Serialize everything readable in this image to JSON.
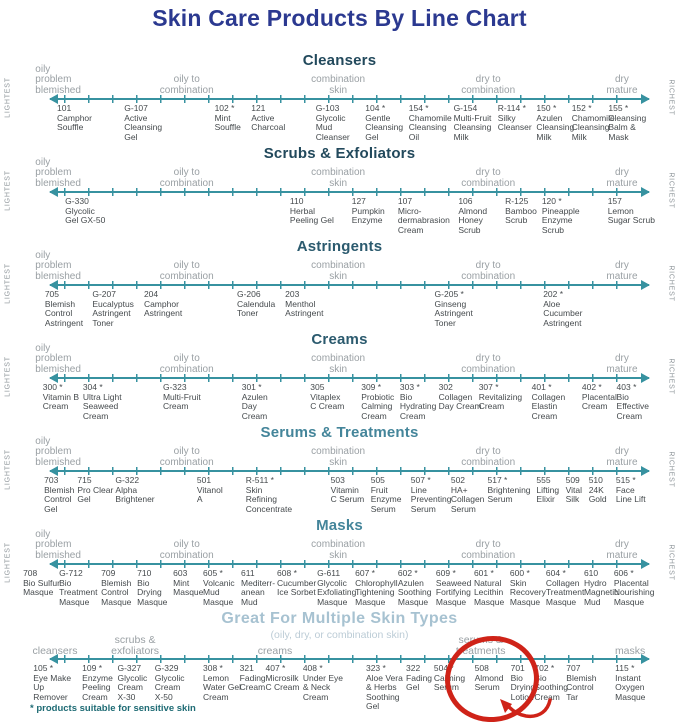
{
  "chart_data": {
    "type": "line",
    "title": "Skin Care Products By Line Chart",
    "footnote": "* products suitable for sensitive skin",
    "axis_range_labels": {
      "left": "LIGHTEST",
      "right": "RICHEST"
    },
    "skin_type_labels": [
      {
        "text": "oily\nproblem\nblemished",
        "pos": 5.2,
        "align": "left"
      },
      {
        "text": "oily to\ncombination",
        "pos": 27.5,
        "align": "center"
      },
      {
        "text": "combination\nskin",
        "pos": 49.8,
        "align": "center"
      },
      {
        "text": "dry to\ncombination",
        "pos": 71.9,
        "align": "center"
      },
      {
        "text": "dry\nmature",
        "pos": 91.6,
        "align": "center"
      }
    ],
    "sections": [
      {
        "name": "Cleansers",
        "color": "#22495c",
        "products": [
          {
            "id": "101",
            "name": "Camphor\nSouffle",
            "pos": 8.4
          },
          {
            "id": "G-107",
            "name": "Active\nCleansing\nGel",
            "pos": 18.3
          },
          {
            "id": "102 *",
            "name": "Mint\nSouffle",
            "pos": 31.6
          },
          {
            "id": "121",
            "name": "Active\nCharcoal",
            "pos": 37.0
          },
          {
            "id": "G-103",
            "name": "Glycolic\nMud\nCleanser",
            "pos": 46.5
          },
          {
            "id": "104 *",
            "name": "Gentle\nCleansing\nGel",
            "pos": 53.8
          },
          {
            "id": "154 *",
            "name": "Chamomile\nCleansing\nOil",
            "pos": 60.2
          },
          {
            "id": "G-154",
            "name": "Multi-Fruit\nCleansing\nMilk",
            "pos": 66.8
          },
          {
            "id": "R-114 *",
            "name": "Silky\nCleanser",
            "pos": 73.3
          },
          {
            "id": "150 *",
            "name": "Azulen\nCleansing\nMilk",
            "pos": 79.0
          },
          {
            "id": "152 *",
            "name": "Chamomile\nCleansing\nMilk",
            "pos": 84.2
          },
          {
            "id": "155 *",
            "name": "Cleansing\nBalm &\nMask",
            "pos": 89.6
          }
        ]
      },
      {
        "name": "Scrubs & Exfoliators",
        "color": "#22495c",
        "products": [
          {
            "id": "G-330",
            "name": "Glycolic\nGel GX-50",
            "pos": 9.6
          },
          {
            "id": "110",
            "name": "Herbal\nPeeling Gel",
            "pos": 42.7
          },
          {
            "id": "127",
            "name": "Pumpkin\nEnzyme",
            "pos": 51.8
          },
          {
            "id": "107",
            "name": "Micro-\ndermabrasion\nCream",
            "pos": 58.6
          },
          {
            "id": "106",
            "name": "Almond\nHoney\nScrub",
            "pos": 67.5
          },
          {
            "id": "R-125",
            "name": "Bamboo\nScrub",
            "pos": 74.4
          },
          {
            "id": "120 *",
            "name": "Pineapple\nEnzyme\nScrub",
            "pos": 79.8
          },
          {
            "id": "157",
            "name": "Lemon\nSugar Scrub",
            "pos": 89.5
          }
        ]
      },
      {
        "name": "Astringents",
        "color": "#2b5a6e",
        "products": [
          {
            "id": "705",
            "name": "Blemish\nControl\nAstringent",
            "pos": 6.6
          },
          {
            "id": "G-207",
            "name": "Eucalyptus\nAstringent\nToner",
            "pos": 13.6
          },
          {
            "id": "204",
            "name": "Camphor\nAstringent",
            "pos": 21.2
          },
          {
            "id": "G-206",
            "name": "Calendula\nToner",
            "pos": 34.9
          },
          {
            "id": "203",
            "name": "Menthol\nAstringent",
            "pos": 42.0
          },
          {
            "id": "G-205 *",
            "name": "Ginseng\nAstringent\nToner",
            "pos": 64.0
          },
          {
            "id": "202 *",
            "name": "Aloe\nCucumber\nAstringent",
            "pos": 80.0
          }
        ]
      },
      {
        "name": "Creams",
        "color": "#2b5a6e",
        "products": [
          {
            "id": "300 *",
            "name": "Vitamin B\nCream",
            "pos": 6.3
          },
          {
            "id": "304 *",
            "name": "Ultra Light\nSeaweed\nCream",
            "pos": 12.2
          },
          {
            "id": "G-323",
            "name": "Multi-Fruit\nCream",
            "pos": 24.0
          },
          {
            "id": "301 *",
            "name": "Azulen\nDay\nCream",
            "pos": 35.6
          },
          {
            "id": "305",
            "name": "Vitaplex\nC Cream",
            "pos": 45.7
          },
          {
            "id": "309 *",
            "name": "Probiotic\nCalming\nCream",
            "pos": 53.2
          },
          {
            "id": "303 *",
            "name": "Bio\nHydrating\nCream",
            "pos": 58.9
          },
          {
            "id": "302",
            "name": "Collagen\nDay Cream",
            "pos": 64.6
          },
          {
            "id": "307 *",
            "name": "Revitalizing\nCream",
            "pos": 70.5
          },
          {
            "id": "401 *",
            "name": "Collagen\nElastin\nCream",
            "pos": 78.3
          },
          {
            "id": "402 *",
            "name": "Placental\nCream",
            "pos": 85.7
          },
          {
            "id": "403 *",
            "name": "Bio\nEffective\nCream",
            "pos": 90.8
          }
        ]
      },
      {
        "name": "Serums & Treatments",
        "color": "#44859a",
        "products": [
          {
            "id": "703",
            "name": "Blemish\nControl\nGel",
            "pos": 6.5
          },
          {
            "id": "715",
            "name": "Pro Clear\nGel",
            "pos": 11.4
          },
          {
            "id": "G-322",
            "name": "Alpha\nBrightener",
            "pos": 17.0
          },
          {
            "id": "501",
            "name": "Vitanol\nA",
            "pos": 29.0
          },
          {
            "id": "R-511 *",
            "name": "Skin\nRefining\nConcentrate",
            "pos": 36.2
          },
          {
            "id": "503",
            "name": "Vitamin\nC Serum",
            "pos": 48.7
          },
          {
            "id": "505",
            "name": "Fruit\nEnzyme\nSerum",
            "pos": 54.6
          },
          {
            "id": "507 *",
            "name": "Line\nPreventing\nSerum",
            "pos": 60.5
          },
          {
            "id": "502",
            "name": "HA+\nCollagen\nSerum",
            "pos": 66.4
          },
          {
            "id": "517 *",
            "name": "Brightening\nSerum",
            "pos": 71.8
          },
          {
            "id": "555",
            "name": "Lifting\nElixir",
            "pos": 79.0
          },
          {
            "id": "509",
            "name": "Vital\nSilk",
            "pos": 83.3
          },
          {
            "id": "510",
            "name": "24K\nGold",
            "pos": 86.7
          },
          {
            "id": "515 *",
            "name": "Face\nLine Lift",
            "pos": 90.7
          }
        ]
      },
      {
        "name": "Masks",
        "color": "#44859a",
        "products": [
          {
            "id": "708",
            "name": "Bio Sulfur\nMasque",
            "pos": 3.4
          },
          {
            "id": "G-712",
            "name": "Bio\nTreatment\nMasque",
            "pos": 8.7
          },
          {
            "id": "709",
            "name": "Blemish\nControl\nMasque",
            "pos": 14.9
          },
          {
            "id": "710",
            "name": "Bio\nDrying\nMasque",
            "pos": 20.2
          },
          {
            "id": "603",
            "name": "Mint\nMasque",
            "pos": 25.5
          },
          {
            "id": "605 *",
            "name": "Volcanic\nMud\nMasque",
            "pos": 29.9
          },
          {
            "id": "611",
            "name": "Mediterr-\nanean\nMud",
            "pos": 35.5
          },
          {
            "id": "608 *",
            "name": "Cucumber\nIce Sorbet",
            "pos": 40.8
          },
          {
            "id": "G-611",
            "name": "Glycolic\nExfoliating\nMasque",
            "pos": 46.7
          },
          {
            "id": "607 *",
            "name": "Chlorophyll\nTightening\nMasque",
            "pos": 52.3
          },
          {
            "id": "602 *",
            "name": "Azulen\nSoothing\nMasque",
            "pos": 58.6
          },
          {
            "id": "609 *",
            "name": "Seaweed\nFortifying\nMasque",
            "pos": 64.2
          },
          {
            "id": "601 *",
            "name": "Natural\nLecithin\nMasque",
            "pos": 69.8
          },
          {
            "id": "600 *",
            "name": "Skin\nRecovery\nMasque",
            "pos": 75.1
          },
          {
            "id": "604 *",
            "name": "Collagen\nTreatment\nMasque",
            "pos": 80.4
          },
          {
            "id": "610",
            "name": "Hydro\nMagnetic\nMud",
            "pos": 86.0
          },
          {
            "id": "606 *",
            "name": "Placental\nNourishing\nMasque",
            "pos": 90.4
          }
        ]
      }
    ],
    "bottom_section": {
      "title": "Great For Multiple Skin Types",
      "subtitle": "(oily, dry, or combination skin)",
      "categories": [
        {
          "text": "cleansers",
          "pos": 8.1
        },
        {
          "text": "scrubs &\nexfoliators",
          "pos": 19.9
        },
        {
          "text": "creams",
          "pos": 40.5
        },
        {
          "text": "serums &\ntreatments",
          "pos": 70.8
        },
        {
          "text": "masks",
          "pos": 92.8
        }
      ],
      "products": [
        {
          "id": "105 *",
          "name": "Eye Make\nUp\nRemover",
          "pos": 4.9
        },
        {
          "id": "109 *",
          "name": "Enzyme\nPeeling\nCream",
          "pos": 12.1
        },
        {
          "id": "G-327",
          "name": "Glycolic\nCream\nX-30",
          "pos": 17.3
        },
        {
          "id": "G-329",
          "name": "Glycolic\nCream\nX-50",
          "pos": 22.8
        },
        {
          "id": "308 *",
          "name": "Lemon\nWater Gel\nCream",
          "pos": 29.9
        },
        {
          "id": "321",
          "name": "Fading\nCream",
          "pos": 35.3
        },
        {
          "id": "407 *",
          "name": "Microsilk\nC Cream",
          "pos": 39.1
        },
        {
          "id": "408 *",
          "name": "Under Eye\n& Neck\nCream",
          "pos": 44.6
        },
        {
          "id": "323 *",
          "name": "Aloe Vera\n& Herbs\nSoothing\nGel",
          "pos": 53.9
        },
        {
          "id": "322",
          "name": "Fading\nGel",
          "pos": 59.8
        },
        {
          "id": "504 *",
          "name": "Calming\nSerum",
          "pos": 63.9
        },
        {
          "id": "508",
          "name": "Almond\nSerum",
          "pos": 69.9
        },
        {
          "id": "701",
          "name": "Bio\nDrying\nLotion",
          "pos": 75.2
        },
        {
          "id": "702 *",
          "name": "Bio\nSoothing\nCream",
          "pos": 78.7
        },
        {
          "id": "707",
          "name": "Blemish\nControl\nTar",
          "pos": 83.4
        },
        {
          "id": "115 *",
          "name": "Instant\nOxygen\nMasque",
          "pos": 90.6
        }
      ],
      "highlight": {
        "circled_product_id": "508",
        "circled_product_name": "Almond Serum"
      }
    }
  },
  "colors": {
    "title": "#2b3990",
    "axis": "#3792a0",
    "skin_label": "#9aa0a4",
    "product_text": "#454a4d",
    "edge_label": "#8d9499",
    "bottom_heading": "#a7c2d1",
    "footnote": "#1e6b74",
    "highlight_red": "#cf2318"
  }
}
